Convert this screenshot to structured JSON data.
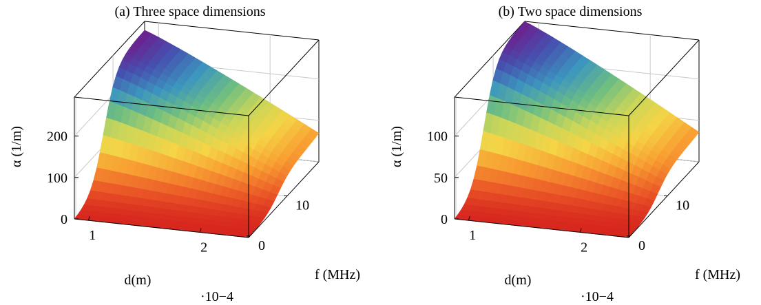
{
  "chart_data": [
    {
      "type": "surface",
      "title": "(a) Three space dimensions",
      "xlabel": "d(m)",
      "x_scale_label": "·10−4",
      "ylabel": "f (MHz)",
      "zlabel": "α (1/m)",
      "x_ticks": [
        "1",
        "2"
      ],
      "y_ticks": [
        "0",
        "10"
      ],
      "z_ticks": [
        "0",
        "100",
        "200"
      ],
      "xlim": [
        0.75,
        2.5
      ],
      "ylim": [
        0,
        20
      ],
      "zlim": [
        0,
        280
      ],
      "peak_alpha": 260,
      "far_edge_alpha": 100,
      "colormap": "spectral: red (low) → yellow → green → blue → purple (high)"
    },
    {
      "type": "surface",
      "title": "(b) Two space dimensions",
      "xlabel": "d(m)",
      "x_scale_label": "·10−4",
      "ylabel": "f (MHz)",
      "zlabel": "α (1/m)",
      "x_ticks": [
        "1",
        "2"
      ],
      "y_ticks": [
        "0",
        "10"
      ],
      "z_ticks": [
        "0",
        "50",
        "100"
      ],
      "xlim": [
        0.75,
        2.5
      ],
      "ylim": [
        0,
        20
      ],
      "zlim": [
        0,
        140
      ],
      "peak_alpha": 140,
      "far_edge_alpha": 47,
      "colormap": "spectral: red (low) → yellow → green → blue → purple (high)"
    }
  ]
}
